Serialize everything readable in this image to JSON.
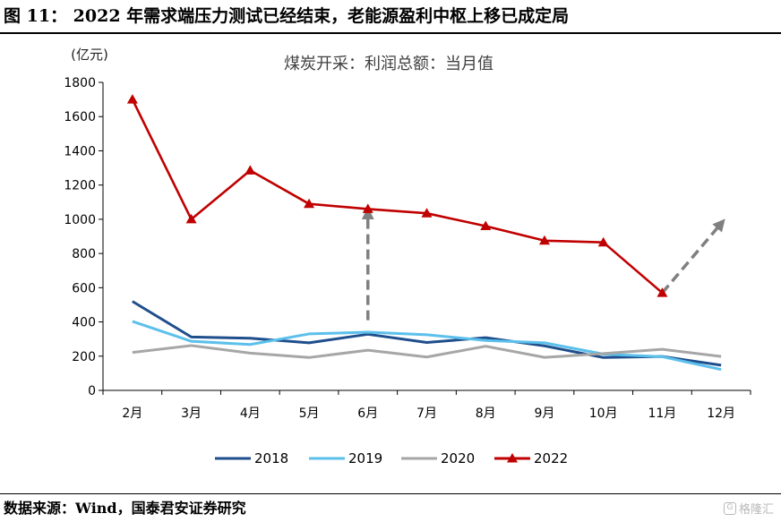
{
  "figure": {
    "title": "图 11：  2022 年需求端压力测试已经结束，老能源盈利中枢上移已成定局",
    "source": "数据来源：Wind，国泰君安证券研究",
    "watermark": "格隆汇"
  },
  "chart_data": {
    "type": "line",
    "title": "煤炭开采：利润总额：当月值",
    "ylabel": "(亿元)",
    "xlabel": "",
    "categories": [
      "2月",
      "3月",
      "4月",
      "5月",
      "6月",
      "7月",
      "8月",
      "9月",
      "10月",
      "11月",
      "12月"
    ],
    "ylim": [
      0,
      1800
    ],
    "yticks": [
      0,
      200,
      400,
      600,
      800,
      1000,
      1200,
      1400,
      1600,
      1800
    ],
    "grid": false,
    "legend_position": "bottom",
    "series": [
      {
        "name": "2018",
        "color": "#1f4e8c",
        "marker": "none",
        "values": [
          520,
          312,
          305,
          278,
          328,
          280,
          308,
          260,
          192,
          198,
          147
        ]
      },
      {
        "name": "2019",
        "color": "#5bc0eb",
        "marker": "none",
        "values": [
          403,
          287,
          268,
          330,
          340,
          325,
          292,
          278,
          212,
          197,
          122
        ]
      },
      {
        "name": "2020",
        "color": "#a6a6a6",
        "marker": "none",
        "values": [
          222,
          262,
          218,
          192,
          235,
          195,
          258,
          193,
          215,
          240,
          198
        ]
      },
      {
        "name": "2022",
        "color": "#c00000",
        "marker": "triangle",
        "values": [
          1700,
          1000,
          1285,
          1090,
          1060,
          1035,
          960,
          875,
          865,
          570,
          null
        ]
      }
    ],
    "annotations": [
      {
        "type": "dashed-arrow",
        "color": "#808080",
        "from": {
          "x": "6月",
          "y": 410
        },
        "to": {
          "x": "6月",
          "y": 1035
        }
      },
      {
        "type": "dashed-arrow",
        "color": "#808080",
        "from": {
          "x": "11月",
          "y": 570
        },
        "to": {
          "x": "12月",
          "y": 975
        }
      }
    ]
  }
}
